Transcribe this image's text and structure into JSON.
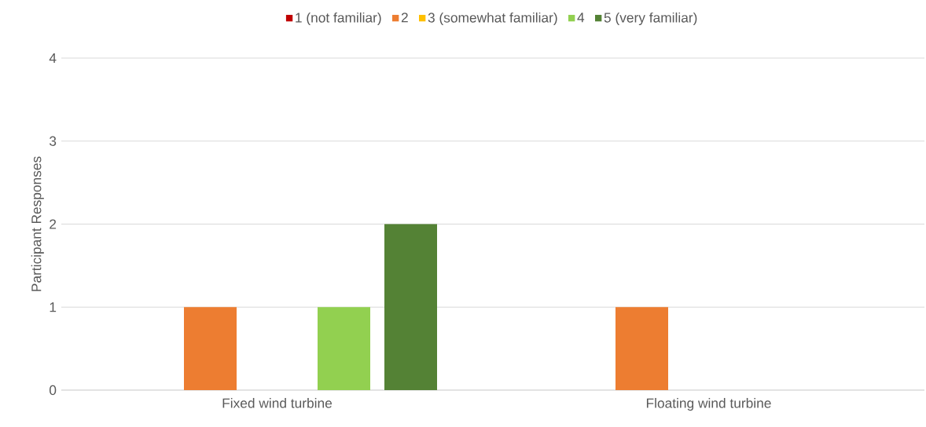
{
  "chart_data": {
    "type": "bar",
    "ylabel": "Participant Responses",
    "categories": [
      "Fixed wind turbine",
      "Floating wind turbine"
    ],
    "series": [
      {
        "name": "1 (not familiar)",
        "color": "#c00000",
        "values": [
          0,
          0
        ]
      },
      {
        "name": "2",
        "color": "#ed7d31",
        "values": [
          1,
          1
        ]
      },
      {
        "name": "3 (somewhat familiar)",
        "color": "#ffc000",
        "values": [
          0,
          0
        ]
      },
      {
        "name": "4",
        "color": "#92d050",
        "values": [
          1,
          0
        ]
      },
      {
        "name": "5 (very familiar)",
        "color": "#548235",
        "values": [
          2,
          0
        ]
      }
    ],
    "ylim": [
      0,
      4
    ],
    "yticks": [
      0,
      1,
      2,
      3,
      4
    ],
    "grid": "y",
    "legend": "top"
  }
}
